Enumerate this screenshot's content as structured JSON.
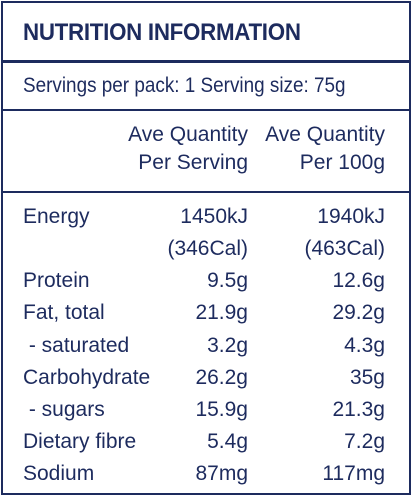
{
  "panel": {
    "title": "NUTRITION INFORMATION",
    "servings_line": "Servings per pack: 1  Serving size: 75g",
    "columns": {
      "per_serving": [
        "Ave Quantity",
        "Per Serving"
      ],
      "per_100g": [
        "Ave Quantity",
        "Per 100g"
      ]
    },
    "rows": [
      {
        "label": "Energy",
        "per_serving": "1450kJ",
        "per_100g": "1940kJ"
      },
      {
        "label": "",
        "per_serving": "(346Cal)",
        "per_100g": "(463Cal)"
      },
      {
        "label": "Protein",
        "per_serving": "9.5g",
        "per_100g": "12.6g"
      },
      {
        "label": "Fat, total",
        "per_serving": "21.9g",
        "per_100g": "29.2g"
      },
      {
        "label": " - saturated",
        "per_serving": "3.2g",
        "per_100g": "4.3g"
      },
      {
        "label": "Carbohydrate",
        "per_serving": "26.2g",
        "per_100g": "35g"
      },
      {
        "label": " - sugars",
        "per_serving": "15.9g",
        "per_100g": "21.3g"
      },
      {
        "label": "Dietary fibre",
        "per_serving": "5.4g",
        "per_100g": "7.2g"
      },
      {
        "label": "Sodium",
        "per_serving": "87mg",
        "per_100g": "117mg"
      }
    ]
  },
  "colors": {
    "ink": "#1d2b5e",
    "background": "#ffffff"
  }
}
